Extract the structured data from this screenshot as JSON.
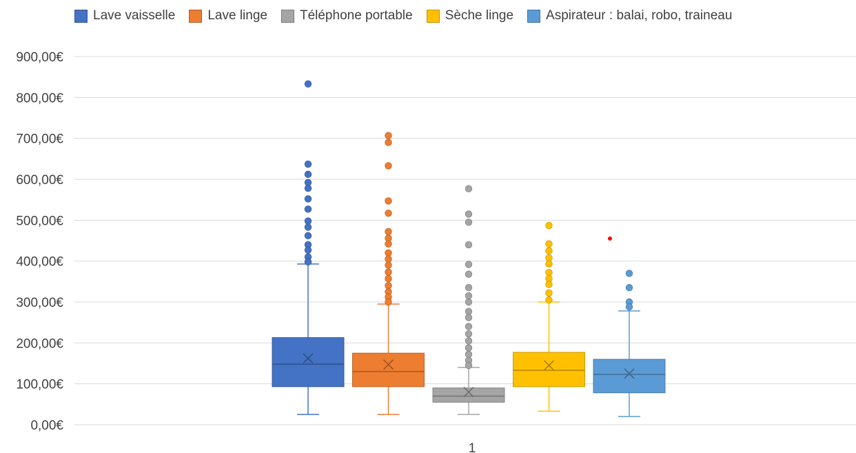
{
  "chart_data": {
    "type": "boxplot",
    "categories": [
      "1"
    ],
    "ylim": [
      0,
      900
    ],
    "yticks": [
      0,
      100,
      200,
      300,
      400,
      500,
      600,
      700,
      800,
      900
    ],
    "ytick_labels": [
      "0,00€",
      "100,00€",
      "200,00€",
      "300,00€",
      "400,00€",
      "500,00€",
      "600,00€",
      "700,00€",
      "800,00€",
      "900,00€"
    ],
    "grid": true,
    "legend_position": "top",
    "series": [
      {
        "name": "Lave vaisselle",
        "color": "#4472C4",
        "min": 25,
        "q1": 93,
        "median": 148,
        "q3": 213,
        "max": 393,
        "mean": 162,
        "outliers": [
          833,
          637,
          612,
          592,
          578,
          552,
          527,
          498,
          483,
          462,
          440,
          427,
          410,
          398
        ]
      },
      {
        "name": "Lave linge",
        "color": "#ED7D31",
        "min": 25,
        "q1": 93,
        "median": 130,
        "q3": 175,
        "max": 295,
        "mean": 147,
        "outliers": [
          707,
          690,
          633,
          547,
          517,
          472,
          456,
          442,
          420,
          405,
          390,
          373,
          357,
          340,
          325,
          312,
          300
        ]
      },
      {
        "name": "Téléphone portable",
        "color": "#A5A5A5",
        "min": 25,
        "q1": 55,
        "median": 70,
        "q3": 90,
        "max": 140,
        "mean": 80,
        "outliers": [
          577,
          515,
          495,
          440,
          392,
          368,
          335,
          315,
          300,
          277,
          262,
          240,
          222,
          205,
          188,
          172,
          157,
          145
        ]
      },
      {
        "name": "Sèche linge",
        "color": "#FFC000",
        "min": 33,
        "q1": 93,
        "median": 133,
        "q3": 177,
        "max": 300,
        "mean": 145,
        "outliers": [
          487,
          442,
          425,
          408,
          393,
          372,
          357,
          343,
          322,
          305
        ]
      },
      {
        "name": "Aspirateur : balai, robo, traineau",
        "color": "#5B9BD5",
        "min": 20,
        "q1": 78,
        "median": 123,
        "q3": 160,
        "max": 278,
        "mean": 125,
        "outliers": [
          370,
          335,
          300,
          288
        ]
      }
    ],
    "annotations": [
      {
        "type": "point",
        "value": 455,
        "color": "#FF0000",
        "near_series": 4
      }
    ]
  }
}
